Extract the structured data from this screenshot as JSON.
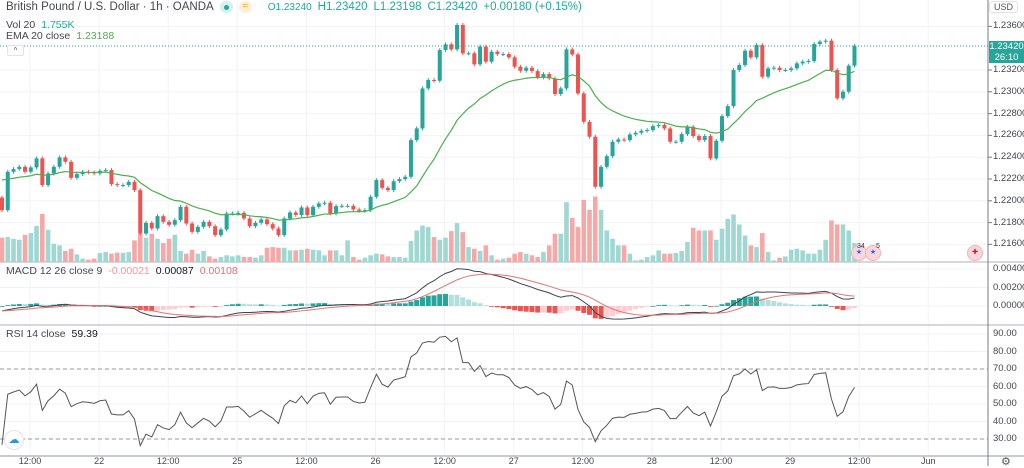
{
  "header": {
    "symbol_title": "British Pound / U.S. Dollar · 1h · OANDA",
    "ohlc": {
      "o": "O1.23240",
      "h": "H1.23420",
      "l": "L1.23198",
      "c": "C1.23420",
      "change": "+0.00180 (+0.15%)"
    },
    "collapse_glyph": "^"
  },
  "indicators": {
    "vol": {
      "label": "Vol 20",
      "value": "1.755K"
    },
    "ema": {
      "label": "EMA 20 close",
      "value": "1.23188"
    },
    "macd": {
      "label": "MACD 12 26 close 9",
      "hist": "-0.00021",
      "macd": "0.00087",
      "signal": "0.00108"
    },
    "rsi": {
      "label": "RSI 14 close",
      "value": "59.39"
    }
  },
  "price_axis": {
    "currency": "USD",
    "ticks": [
      "1.23600",
      "1.23200",
      "1.23000",
      "1.22800",
      "1.22600",
      "1.22400",
      "1.22200",
      "1.22000",
      "1.21800",
      "1.21600"
    ],
    "last_price": "1.23420",
    "countdown": "26:10"
  },
  "macd_axis": {
    "ticks": [
      "0.00400",
      "0.00200",
      "0.00000"
    ]
  },
  "rsi_axis": {
    "ticks": [
      "90.00",
      "80.00",
      "70.00",
      "60.00",
      "50.00",
      "40.00",
      "30.00"
    ],
    "upper_band": 70,
    "lower_band": 30
  },
  "time_axis": {
    "labels": [
      "12:00",
      "22",
      "12:00",
      "25",
      "12:00",
      "26",
      "12:00",
      "27",
      "12:00",
      "28",
      "12:00",
      "29",
      "12:00",
      "Jun"
    ]
  },
  "events": {
    "us_count_a": "34",
    "us_count_b": "5"
  },
  "colors": {
    "up": "#26a69a",
    "down": "#ef5350",
    "ema": "#4caf50",
    "macd": "#3c4452",
    "signal": "#e57373",
    "rsi": "#555555"
  },
  "chart_data": {
    "type": "candlestick",
    "interval": "1h",
    "first_open": 1.2203,
    "close": [
      1.21914,
      1.22266,
      1.22291,
      1.22312,
      1.22266,
      1.22306,
      1.22389,
      1.22144,
      1.22251,
      1.22312,
      1.22398,
      1.22358,
      1.22211,
      1.22245,
      1.22266,
      1.2226,
      1.22251,
      1.22275,
      1.22282,
      1.22153,
      1.22144,
      1.22144,
      1.22174,
      1.22098,
      1.217,
      1.21798,
      1.21746,
      1.21859,
      1.21807,
      1.2178,
      1.21823,
      1.21945,
      1.21792,
      1.21715,
      1.21761,
      1.21807,
      1.21767,
      1.21685,
      1.21737,
      1.21884,
      1.21884,
      1.2189,
      1.21838,
      1.21767,
      1.21798,
      1.21829,
      1.21786,
      1.21746,
      1.21685,
      1.21838,
      1.21893,
      1.2187,
      1.21939,
      1.21868,
      1.21945,
      1.21976,
      1.21982,
      1.21884,
      1.21951,
      1.21954,
      1.21954,
      1.2192,
      1.21908,
      1.21914,
      1.22037,
      1.2219,
      1.22119,
      1.22098,
      1.2218,
      1.22199,
      1.2222,
      1.22557,
      1.22664,
      1.23031,
      1.23108,
      1.23102,
      1.23383,
      1.23435,
      1.23389,
      1.23613,
      1.23353,
      1.23353,
      1.23252,
      1.23414,
      1.23276,
      1.23368,
      1.23346,
      1.23346,
      1.23316,
      1.2323,
      1.23193,
      1.23221,
      1.2319,
      1.23132,
      1.23163,
      1.23123,
      1.22979,
      1.23031,
      1.23389,
      1.23343,
      1.22985,
      1.22725,
      1.22588,
      1.22129,
      1.22312,
      1.2241,
      1.22542,
      1.22563,
      1.22557,
      1.22609,
      1.22624,
      1.22643,
      1.22649,
      1.22685,
      1.22695,
      1.22664,
      1.22542,
      1.22542,
      1.22612,
      1.22679,
      1.22594,
      1.22557,
      1.22594,
      1.22389,
      1.22551,
      1.22777,
      1.22869,
      1.232,
      1.23245,
      1.23377,
      1.23316,
      1.23429,
      1.23138,
      1.23215,
      1.23221,
      1.232,
      1.232,
      1.23215,
      1.23261,
      1.23276,
      1.23282,
      1.23438,
      1.2346,
      1.23469,
      1.232,
      1.2294,
      1.23001,
      1.2324,
      1.2342
    ],
    "volume_k": [
      2.25,
      2.31,
      2.15,
      2.06,
      2.52,
      2.68,
      3.35,
      4.46,
      2.98,
      1.69,
      1.54,
      1.02,
      1.23,
      0.71,
      0.31,
      0.22,
      0.31,
      0.83,
      0.92,
      0.77,
      0.86,
      0.86,
      0.92,
      2.0,
      2.62,
      2.25,
      2.62,
      2.15,
      1.75,
      2.15,
      2.52,
      1.02,
      0.77,
      1.14,
      0.77,
      1.02,
      0.52,
      0.31,
      0.46,
      0.62,
      0.52,
      0.62,
      0.46,
      0.46,
      0.4,
      0.62,
      1.32,
      1.38,
      1.32,
      1.32,
      1.08,
      1.08,
      1.14,
      1.23,
      1.14,
      1.08,
      0.62,
      1.08,
      1.08,
      0.62,
      2.0,
      0.46,
      0.22,
      0.4,
      0.62,
      0.77,
      0.71,
      0.52,
      0.46,
      0.46,
      0.4,
      1.94,
      2.92,
      3.38,
      3.23,
      2.31,
      2.06,
      2.25,
      2.86,
      3.6,
      2.77,
      1.38,
      1.23,
      1.02,
      1.54,
      0.62,
      0.22,
      0.31,
      0.4,
      0.77,
      0.92,
      0.77,
      0.62,
      0.46,
      0.92,
      1.54,
      2.62,
      2.62,
      5.54,
      4.09,
      3.23,
      5.75,
      4.83,
      6.06,
      4.83,
      2.92,
      2.15,
      1.54,
      1.54,
      0.77,
      0.15,
      0.22,
      0.46,
      0.62,
      1.08,
      0.77,
      0.77,
      0.83,
      1.02,
      1.85,
      3.17,
      2.92,
      2.92,
      2.92,
      2.06,
      3.08,
      4.0,
      4.4,
      3.48,
      2.46,
      1.54,
      1.38,
      2.68,
      0.92,
      0.15,
      0.4,
      0.52,
      1.14,
      1.23,
      1.08,
      0.77,
      0.77,
      1.14,
      2.06,
      3.85,
      3.48,
      3.48,
      2.92,
      1.755
    ],
    "ema_period": 20,
    "macd_params": [
      12,
      26,
      9
    ],
    "rsi_period": 14,
    "price_range": [
      1.215,
      1.2375
    ]
  }
}
